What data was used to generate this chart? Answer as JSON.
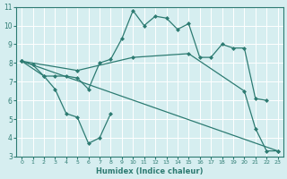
{
  "xlabel": "Humidex (Indice chaleur)",
  "bg_color": "#d6eef0",
  "grid_color": "#ffffff",
  "line_color": "#2d7b72",
  "xlim": [
    -0.5,
    23.5
  ],
  "ylim": [
    3,
    11
  ],
  "xticks": [
    0,
    1,
    2,
    3,
    4,
    5,
    6,
    7,
    8,
    9,
    10,
    11,
    12,
    13,
    14,
    15,
    16,
    17,
    18,
    19,
    20,
    21,
    22,
    23
  ],
  "yticks": [
    3,
    4,
    5,
    6,
    7,
    8,
    9,
    10,
    11
  ],
  "line1_x": [
    0,
    1,
    2,
    3,
    4,
    5,
    6,
    7,
    8,
    9,
    10,
    11,
    12,
    13,
    14,
    15,
    16,
    17,
    18,
    19,
    20,
    21,
    22
  ],
  "line1_y": [
    8.1,
    7.9,
    7.3,
    7.3,
    7.3,
    7.2,
    6.6,
    8.0,
    8.2,
    9.3,
    10.8,
    10.0,
    10.5,
    10.4,
    9.8,
    10.1,
    8.3,
    8.3,
    9.0,
    8.8,
    8.8,
    6.1,
    6.0
  ],
  "line2_x": [
    0,
    2,
    3,
    4,
    5,
    6,
    7,
    8
  ],
  "line2_y": [
    8.1,
    7.3,
    6.6,
    5.3,
    5.1,
    3.7,
    4.0,
    5.3
  ],
  "line3_x": [
    0,
    5,
    10,
    15,
    20,
    21,
    22,
    23
  ],
  "line3_y": [
    8.1,
    7.6,
    8.3,
    8.5,
    6.5,
    4.5,
    3.3,
    3.3
  ],
  "line4_x": [
    0,
    23
  ],
  "line4_y": [
    8.1,
    3.3
  ],
  "marker": "D",
  "markersize": 2.0,
  "linewidth": 0.9
}
